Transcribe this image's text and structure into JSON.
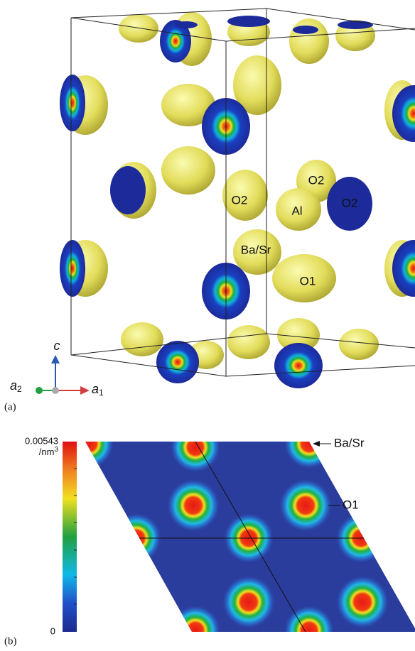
{
  "panel_a": {
    "label": "(a)",
    "atoms": [
      "O2",
      "O2",
      "O2",
      "Al",
      "Ba/Sr",
      "O1"
    ],
    "axes": {
      "c": "c",
      "a2": {
        "base": "a",
        "sub": "2"
      },
      "a1": {
        "base": "a",
        "sub": "1"
      }
    }
  },
  "panel_b": {
    "label": "(b)",
    "colorbar": {
      "max": 0.00543,
      "unit": {
        "text": "/nm",
        "sup": "3"
      },
      "min": 0
    },
    "annotations": [
      "Ba/Sr",
      "O1"
    ]
  }
}
